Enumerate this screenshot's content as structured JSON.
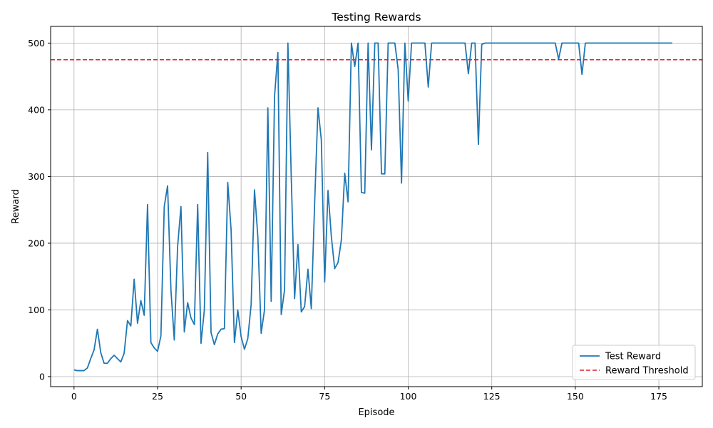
{
  "chart_data": {
    "type": "line",
    "title": "Testing Rewards",
    "xlabel": "Episode",
    "ylabel": "Reward",
    "xlim": [
      -7,
      188
    ],
    "ylim": [
      -15,
      525
    ],
    "xticks": [
      0,
      25,
      50,
      75,
      100,
      125,
      150,
      175
    ],
    "yticks": [
      0,
      100,
      200,
      300,
      400,
      500
    ],
    "grid": true,
    "legend_position": "bottom-right",
    "series": [
      {
        "name": "Test Reward",
        "color": "#1f77b4",
        "style": "solid",
        "x": [
          0,
          1,
          2,
          3,
          4,
          5,
          6,
          7,
          8,
          9,
          10,
          11,
          12,
          13,
          14,
          15,
          16,
          17,
          18,
          19,
          20,
          21,
          22,
          23,
          24,
          25,
          26,
          27,
          28,
          29,
          30,
          31,
          32,
          33,
          34,
          35,
          36,
          37,
          38,
          39,
          40,
          41,
          42,
          43,
          44,
          45,
          46,
          47,
          48,
          49,
          50,
          51,
          52,
          53,
          54,
          55,
          56,
          57,
          58,
          59,
          60,
          61,
          62,
          63,
          64,
          65,
          66,
          67,
          68,
          69,
          70,
          71,
          72,
          73,
          74,
          75,
          76,
          77,
          78,
          79,
          80,
          81,
          82,
          83,
          84,
          85,
          86,
          87,
          88,
          89,
          90,
          91,
          92,
          93,
          94,
          95,
          96,
          97,
          98,
          99,
          100,
          101,
          102,
          103,
          104,
          105,
          106,
          107,
          108,
          109,
          110,
          111,
          112,
          113,
          114,
          115,
          116,
          117,
          118,
          119,
          120,
          121,
          122,
          123,
          124,
          125,
          126,
          127,
          128,
          129,
          130,
          131,
          132,
          133,
          134,
          135,
          136,
          137,
          138,
          139,
          140,
          141,
          142,
          143,
          144,
          145,
          146,
          147,
          148,
          149,
          150,
          151,
          152,
          153,
          154,
          155,
          156,
          157,
          158,
          159,
          160,
          161,
          162,
          163,
          164,
          165,
          166,
          167,
          168,
          169,
          170,
          171,
          172,
          173,
          174,
          175,
          176,
          177,
          178,
          179
        ],
        "y": [
          10,
          9,
          9,
          9,
          13,
          27,
          40,
          71,
          36,
          20,
          20,
          27,
          32,
          27,
          22,
          35,
          84,
          76,
          146,
          80,
          114,
          92,
          258,
          51,
          43,
          38,
          61,
          255,
          286,
          130,
          55,
          195,
          255,
          67,
          111,
          88,
          78,
          258,
          50,
          100,
          336,
          66,
          48,
          64,
          71,
          72,
          291,
          220,
          51,
          100,
          60,
          41,
          57,
          108,
          280,
          210,
          65,
          100,
          403,
          113,
          420,
          486,
          93,
          130,
          500,
          300,
          117,
          198,
          97,
          105,
          161,
          102,
          260,
          403,
          355,
          142,
          279,
          210,
          162,
          171,
          205,
          305,
          262,
          500,
          465,
          500,
          276,
          275,
          500,
          340,
          500,
          500,
          304,
          304,
          500,
          500,
          500,
          460,
          290,
          500,
          413,
          500,
          500,
          500,
          500,
          500,
          434,
          500,
          500,
          500,
          500,
          500,
          500,
          500,
          500,
          500,
          500,
          500,
          454,
          500,
          500,
          348,
          498,
          500,
          500,
          500,
          500,
          500,
          500,
          500,
          500,
          500,
          500,
          500,
          500,
          500,
          500,
          500,
          500,
          500,
          500,
          500,
          500,
          500,
          500,
          476,
          500,
          500,
          500,
          500,
          500,
          500,
          453,
          500,
          500,
          500,
          500,
          500,
          500,
          500,
          500,
          500,
          500,
          500,
          500,
          500,
          500,
          500,
          500,
          500,
          500,
          500,
          500,
          500,
          500,
          500,
          500,
          500,
          500,
          500
        ]
      },
      {
        "name": "Reward Threshold",
        "color": "#d62728",
        "style": "dashed",
        "value": 475
      }
    ]
  }
}
